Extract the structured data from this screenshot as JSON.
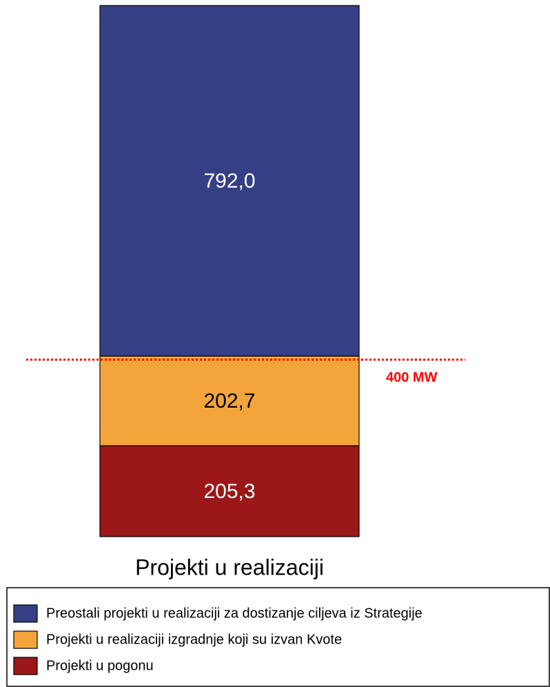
{
  "chart_data": {
    "type": "stacked_bar",
    "categories": [
      "Projekti u realizaciji"
    ],
    "series": [
      {
        "name": "Projekti u pogonu",
        "color": "#9b1718",
        "values": [
          205.3
        ],
        "value_labels": [
          "205,3"
        ],
        "label_color": "#ffffff"
      },
      {
        "name": "Projekti u realizaciji izgradnje koji su izvan Kvote",
        "color": "#f3a43a",
        "values": [
          202.7
        ],
        "value_labels": [
          "202,7"
        ],
        "label_color": "#000000"
      },
      {
        "name": "Preostali projekti u realizaciji za dostizanje ciljeva iz Strategije",
        "color": "#353f86",
        "values": [
          792.0
        ],
        "value_labels": [
          "792,0"
        ],
        "label_color": "#ffffff"
      }
    ],
    "ylim": [
      0,
      1200
    ],
    "reference_line": {
      "value": 400,
      "label": "400 MW",
      "color": "#ff0000"
    },
    "legend": "bottom"
  }
}
